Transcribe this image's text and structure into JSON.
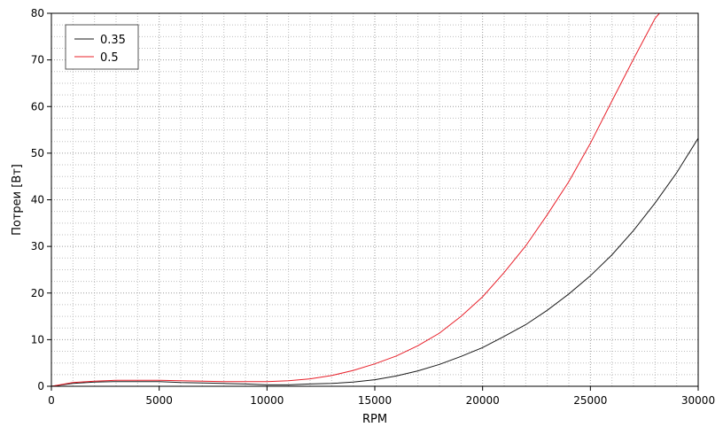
{
  "chart_data": {
    "type": "line",
    "title": "",
    "xlabel": "RPM",
    "ylabel": "Потреи [Вт]",
    "xlim": [
      0,
      30000
    ],
    "ylim": [
      0,
      80
    ],
    "x_ticks": [
      0,
      5000,
      10000,
      15000,
      20000,
      25000,
      30000
    ],
    "y_ticks": [
      0,
      10,
      20,
      30,
      40,
      50,
      60,
      70,
      80
    ],
    "grid": true,
    "legend_position": "top-left",
    "series": [
      {
        "name": "0.35",
        "color": "#1a1a1a",
        "x": [
          0,
          1000,
          2000,
          3000,
          4000,
          5000,
          6000,
          7000,
          8000,
          9000,
          10000,
          11000,
          12000,
          13000,
          14000,
          15000,
          16000,
          17000,
          18000,
          19000,
          20000,
          21000,
          22000,
          23000,
          24000,
          25000,
          26000,
          27000,
          28000,
          29000,
          30000
        ],
        "y": [
          0,
          0.6,
          0.9,
          1.0,
          1.0,
          1.0,
          0.8,
          0.7,
          0.6,
          0.5,
          0.3,
          0.3,
          0.5,
          0.6,
          0.9,
          1.4,
          2.2,
          3.3,
          4.7,
          6.4,
          8.3,
          10.7,
          13.2,
          16.3,
          19.8,
          23.7,
          28.2,
          33.4,
          39.3,
          45.8,
          53.2
        ]
      },
      {
        "name": "0.5",
        "color": "#e8202a",
        "x": [
          0,
          1000,
          2000,
          3000,
          4000,
          5000,
          6000,
          7000,
          8000,
          9000,
          10000,
          11000,
          12000,
          13000,
          14000,
          15000,
          16000,
          17000,
          18000,
          19000,
          20000,
          21000,
          22000,
          23000,
          24000,
          25000,
          26000,
          27000,
          28000,
          28200
        ],
        "y": [
          0,
          0.8,
          1.1,
          1.3,
          1.3,
          1.3,
          1.2,
          1.1,
          1.0,
          1.0,
          1.0,
          1.2,
          1.6,
          2.3,
          3.4,
          4.8,
          6.5,
          8.7,
          11.4,
          15.0,
          19.2,
          24.4,
          30.1,
          36.8,
          43.9,
          52.1,
          61.2,
          70.2,
          78.9,
          80.0
        ]
      }
    ]
  }
}
